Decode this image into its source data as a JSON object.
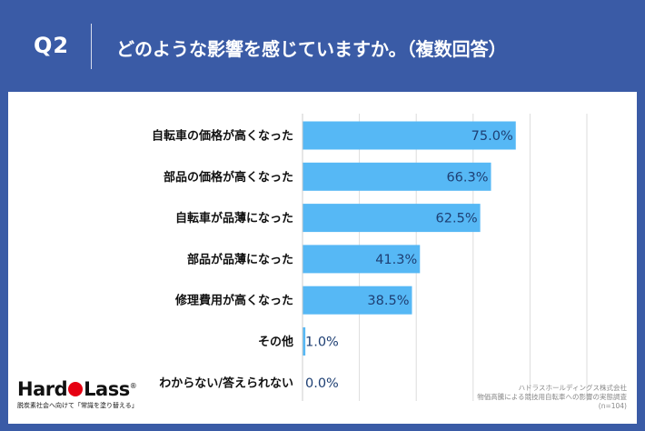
{
  "header": {
    "question_number": "Q2",
    "question_text": "どのような影響を感じていますか。（複数回答）"
  },
  "brand": {
    "name_part1": "Hard",
    "name_part2": "Lass",
    "trademark": "®",
    "tagline": "脱炭素社会へ向けて「常識を塗り替える」"
  },
  "source": {
    "line1": "ハドラスホールディングス株式会社",
    "line2": "物価高騰による競技用自転車への影響の実態調査",
    "line3": "(n=104)"
  },
  "colors": {
    "background": "#3a5ba6",
    "bar": "#56b8f5",
    "value_text": "#1e3f73",
    "grid": "#dddddd"
  },
  "chart_data": {
    "type": "bar",
    "orientation": "horizontal",
    "categories": [
      "自転車の価格が高くなった",
      "部品の価格が高くなった",
      "自転車が品薄になった",
      "部品が品薄になった",
      "修理費用が高くなった",
      "その他",
      "わからない/答えられない"
    ],
    "values": [
      75.0,
      66.3,
      62.5,
      41.3,
      38.5,
      1.0,
      0.0
    ],
    "value_labels": [
      "75.0%",
      "66.3%",
      "62.5%",
      "41.3%",
      "38.5%",
      "1.0%",
      "0.0%"
    ],
    "xlim": [
      0,
      100
    ],
    "grid": true,
    "legend": false
  }
}
